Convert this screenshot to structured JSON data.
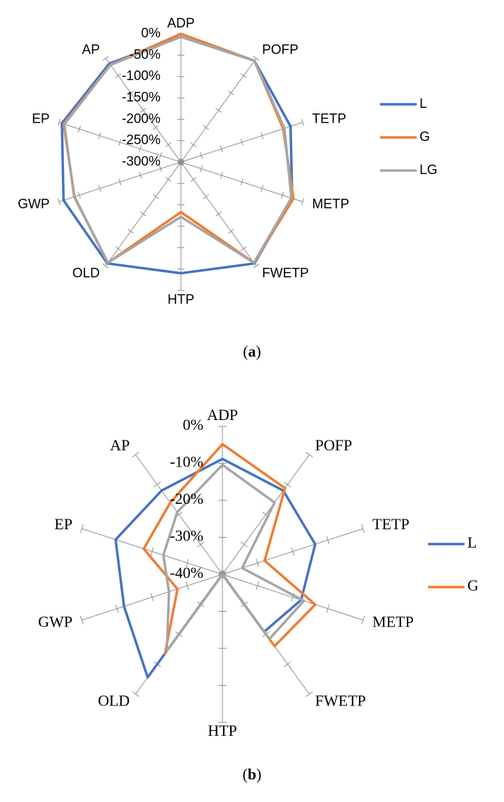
{
  "captions": {
    "a": {
      "open": "(",
      "letter": "a",
      "close": ")"
    },
    "b": {
      "open": "(",
      "letter": "b",
      "close": ")"
    }
  },
  "colors": {
    "L": "#4472C4",
    "G": "#ED7D31",
    "LG": "#A5A5A5",
    "axis": "#8c8c8c"
  },
  "chart_data": [
    {
      "panel": "a",
      "type": "radar",
      "categories": [
        "ADP",
        "POFP",
        "TETP",
        "METP",
        "FWETP",
        "HTP",
        "OLD",
        "GWP",
        "EP",
        "AP"
      ],
      "ticks": [
        "0%",
        "-50%",
        "-100%",
        "-150%",
        "-200%",
        "-250%",
        "-300%"
      ],
      "rlim": [
        -300,
        0
      ],
      "legend_position": "right",
      "series": [
        {
          "name": "L",
          "values": [
            -7,
            -7,
            -30,
            -26,
            -7,
            -40,
            -7,
            -11,
            -7,
            -15
          ]
        },
        {
          "name": "G",
          "values": [
            0,
            -7,
            -48,
            -23,
            -9,
            -183,
            -9,
            -38,
            -11,
            -19
          ]
        },
        {
          "name": "LG",
          "values": [
            -7,
            -7,
            -45,
            -28,
            -9,
            -172,
            -9,
            -37,
            -13,
            -19
          ]
        }
      ]
    },
    {
      "panel": "b",
      "type": "radar",
      "categories": [
        "ADP",
        "POFP",
        "TETP",
        "METP",
        "FWETP",
        "HTP",
        "OLD",
        "GWP",
        "EP",
        "AP"
      ],
      "ticks": [
        "0%",
        "-10%",
        "-20%",
        "-30%",
        "-40%"
      ],
      "rlim": [
        -50,
        0
      ],
      "legend_position": "right",
      "series": [
        {
          "name": "L",
          "values": [
            -11,
            -15,
            -17,
            -22,
            -26,
            -50,
            -7,
            -15,
            -12,
            -15
          ]
        },
        {
          "name": "G",
          "values": [
            -6,
            -14,
            -35,
            -17,
            -20,
            -50,
            -17,
            -34,
            -22,
            -20
          ]
        },
        {
          "name": "LG",
          "values": [
            -13,
            -20,
            -43,
            -21,
            -23,
            -50,
            -18,
            -31,
            -29,
            -24
          ]
        }
      ]
    }
  ],
  "legend": {
    "a": [
      "L",
      "G",
      "LG"
    ],
    "b": [
      "L",
      "G"
    ]
  }
}
